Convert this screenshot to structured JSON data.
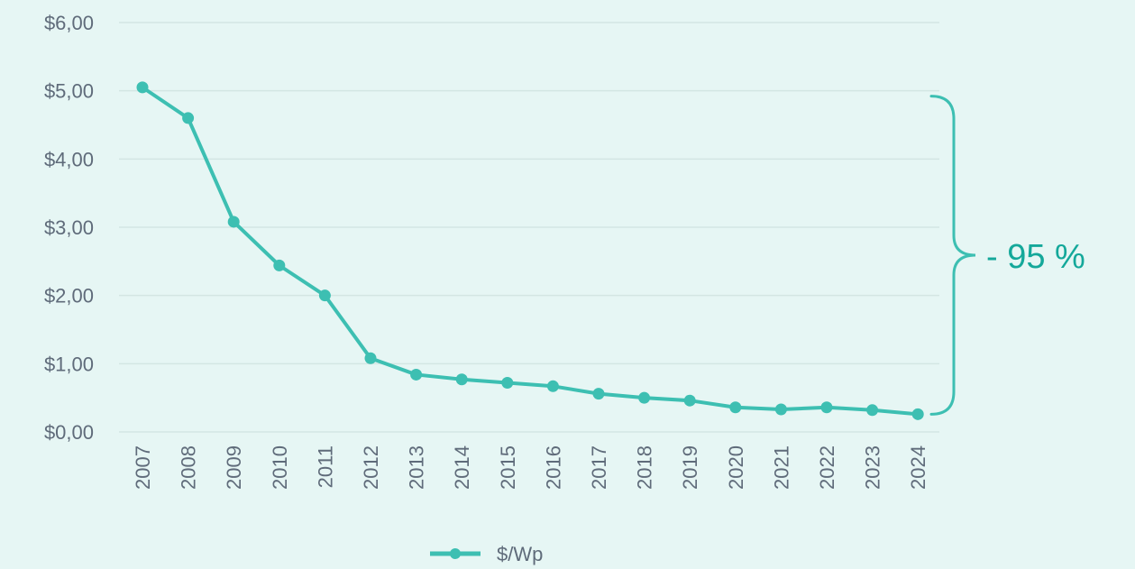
{
  "colors": {
    "background": "#e6f6f4",
    "series": "#3dbfb2",
    "grid": "#d3e6e3",
    "text": "#5f6b7a",
    "annotation": "#14a89a"
  },
  "chart_data": {
    "type": "line",
    "x": [
      "2007",
      "2008",
      "2009",
      "2010",
      "2011",
      "2012",
      "2013",
      "2014",
      "2015",
      "2016",
      "2017",
      "2018",
      "2019",
      "2020",
      "2021",
      "2022",
      "2023",
      "2024"
    ],
    "series": [
      {
        "name": "$/Wp",
        "values": [
          5.05,
          4.6,
          3.08,
          2.44,
          2.0,
          1.08,
          0.84,
          0.77,
          0.72,
          0.67,
          0.56,
          0.5,
          0.46,
          0.36,
          0.33,
          0.36,
          0.32,
          0.26
        ]
      }
    ],
    "ylim": [
      0,
      6
    ],
    "y_ticks": [
      0,
      1,
      2,
      3,
      4,
      5,
      6
    ],
    "y_tick_labels": [
      "$0,00",
      "$1,00",
      "$2,00",
      "$3,00",
      "$4,00",
      "$5,00",
      "$6,00"
    ],
    "x_tick_rotation": -90,
    "grid": true,
    "legend": "bottom-center",
    "annotation": {
      "text": "- 95 %",
      "from_value": 5.0,
      "to_value": 0.26
    }
  }
}
